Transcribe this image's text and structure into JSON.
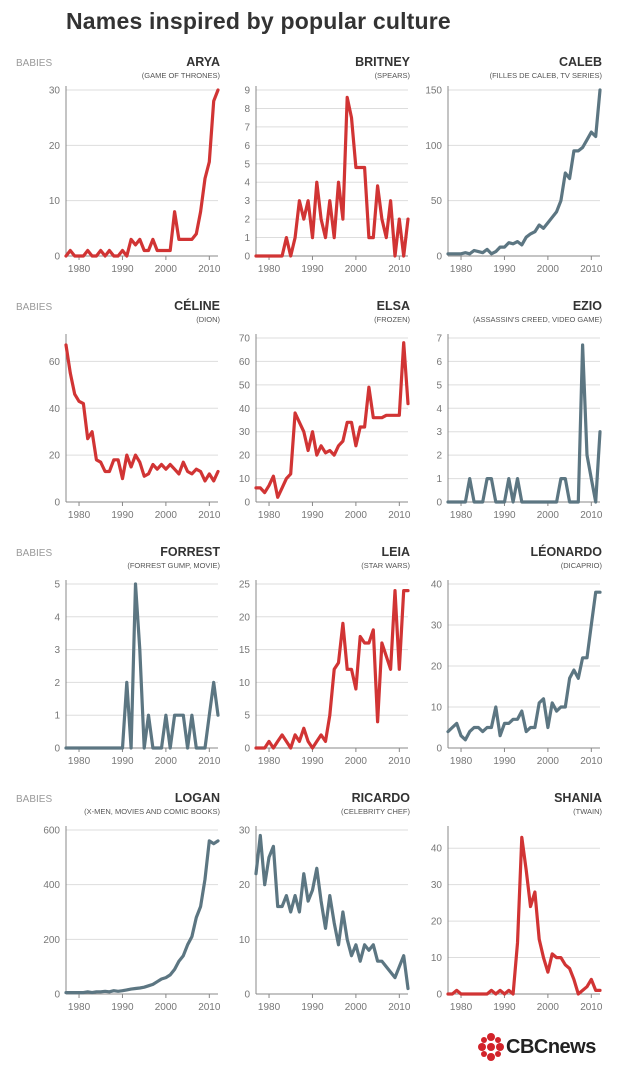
{
  "page": {
    "title": "Names inspired by popular culture"
  },
  "brand": {
    "text": "CBCnews",
    "logo": "cbc-gem-logo"
  },
  "colors": {
    "red": "#d13434",
    "slate": "#5c7682",
    "axis": "#888888",
    "grid": "#dddddd",
    "text": "#777777"
  },
  "axis_label": "BABIES",
  "chart_data": [
    {
      "type": "line",
      "name": "ARYA",
      "subtitle": "(GAME OF THRONES)",
      "color": "red",
      "ylabel": "BABIES",
      "yticks": [
        0,
        10,
        20,
        30
      ],
      "ylim": [
        0,
        30
      ],
      "xticks": [
        1980,
        1990,
        2000,
        2010
      ],
      "xlim": [
        1977,
        2012
      ],
      "x": [
        1977,
        1978,
        1979,
        1980,
        1981,
        1982,
        1983,
        1984,
        1985,
        1986,
        1987,
        1988,
        1989,
        1990,
        1991,
        1992,
        1993,
        1994,
        1995,
        1996,
        1997,
        1998,
        1999,
        2000,
        2001,
        2002,
        2003,
        2004,
        2005,
        2006,
        2007,
        2008,
        2009,
        2010,
        2011,
        2012
      ],
      "values": [
        0,
        1,
        0,
        0,
        0,
        1,
        0,
        0,
        1,
        0,
        1,
        0,
        0,
        1,
        0,
        3,
        2,
        3,
        1,
        1,
        3,
        1,
        1,
        1,
        1,
        8,
        3,
        3,
        3,
        3,
        4,
        8,
        14,
        17,
        28,
        30
      ]
    },
    {
      "type": "line",
      "name": "BRITNEY",
      "subtitle": "(SPEARS)",
      "color": "red",
      "ylabel": "",
      "yticks": [
        0,
        1,
        2,
        3,
        4,
        5,
        6,
        7,
        8,
        9
      ],
      "ylim": [
        0,
        9
      ],
      "xticks": [
        1980,
        1990,
        2000,
        2010
      ],
      "xlim": [
        1977,
        2012
      ],
      "x": [
        1977,
        1978,
        1979,
        1980,
        1981,
        1982,
        1983,
        1984,
        1985,
        1986,
        1987,
        1988,
        1989,
        1990,
        1991,
        1992,
        1993,
        1994,
        1995,
        1996,
        1997,
        1998,
        1999,
        2000,
        2001,
        2002,
        2003,
        2004,
        2005,
        2006,
        2007,
        2008,
        2009,
        2010,
        2011,
        2012
      ],
      "values": [
        0,
        0,
        0,
        0,
        0,
        0,
        0,
        1,
        0,
        1,
        3,
        2,
        3,
        1,
        4,
        2,
        1,
        3,
        1,
        4,
        2,
        8.6,
        7.5,
        4.8,
        4.8,
        4.8,
        1,
        1,
        3.8,
        2,
        1,
        3,
        0,
        2,
        0,
        2
      ]
    },
    {
      "type": "line",
      "name": "CALEB",
      "subtitle": "(FILLES DE CALEB, TV SERIES)",
      "color": "slate",
      "ylabel": "",
      "yticks": [
        0,
        50,
        100,
        150
      ],
      "ylim": [
        0,
        150
      ],
      "xticks": [
        1980,
        1990,
        2000,
        2010
      ],
      "xlim": [
        1977,
        2012
      ],
      "x": [
        1977,
        1978,
        1979,
        1980,
        1981,
        1982,
        1983,
        1984,
        1985,
        1986,
        1987,
        1988,
        1989,
        1990,
        1991,
        1992,
        1993,
        1994,
        1995,
        1996,
        1997,
        1998,
        1999,
        2000,
        2001,
        2002,
        2003,
        2004,
        2005,
        2006,
        2007,
        2008,
        2009,
        2010,
        2011,
        2012
      ],
      "values": [
        2,
        2,
        2,
        2,
        3,
        2,
        5,
        4,
        3,
        6,
        2,
        4,
        8,
        8,
        12,
        11,
        13,
        10,
        17,
        20,
        22,
        28,
        25,
        30,
        35,
        40,
        50,
        75,
        70,
        95,
        95,
        98,
        105,
        112,
        108,
        150
      ]
    },
    {
      "type": "line",
      "name": "CÉLINE",
      "subtitle": "(DION)",
      "color": "red",
      "ylabel": "BABIES",
      "yticks": [
        0,
        20,
        40,
        60
      ],
      "ylim": [
        0,
        70
      ],
      "xticks": [
        1980,
        1990,
        2000,
        2010
      ],
      "xlim": [
        1977,
        2012
      ],
      "x": [
        1977,
        1978,
        1979,
        1980,
        1981,
        1982,
        1983,
        1984,
        1985,
        1986,
        1987,
        1988,
        1989,
        1990,
        1991,
        1992,
        1993,
        1994,
        1995,
        1996,
        1997,
        1998,
        1999,
        2000,
        2001,
        2002,
        2003,
        2004,
        2005,
        2006,
        2007,
        2008,
        2009,
        2010,
        2011,
        2012
      ],
      "values": [
        67,
        55,
        46,
        43,
        42,
        27,
        30,
        18,
        17,
        13,
        13,
        18,
        18,
        10,
        20,
        15,
        20,
        17,
        11,
        12,
        16,
        14,
        16,
        14,
        16,
        14,
        12,
        17,
        13,
        12,
        14,
        13,
        9,
        12,
        9,
        13
      ]
    },
    {
      "type": "line",
      "name": "ELSA",
      "subtitle": "(FROZEN)",
      "color": "red",
      "ylabel": "",
      "yticks": [
        0,
        10,
        20,
        30,
        40,
        50,
        60,
        70
      ],
      "ylim": [
        0,
        70
      ],
      "xticks": [
        1980,
        1990,
        2000,
        2010
      ],
      "xlim": [
        1977,
        2012
      ],
      "x": [
        1977,
        1978,
        1979,
        1980,
        1981,
        1982,
        1983,
        1984,
        1985,
        1986,
        1987,
        1988,
        1989,
        1990,
        1991,
        1992,
        1993,
        1994,
        1995,
        1996,
        1997,
        1998,
        1999,
        2000,
        2001,
        2002,
        2003,
        2004,
        2005,
        2006,
        2007,
        2008,
        2009,
        2010,
        2011,
        2012
      ],
      "values": [
        6,
        6,
        4,
        7,
        11,
        2,
        6,
        10,
        12,
        38,
        34,
        30,
        22,
        30,
        20,
        24,
        21,
        22,
        20,
        24,
        26,
        34,
        34,
        24,
        32,
        32,
        49,
        36,
        36,
        36,
        37,
        37,
        37,
        37,
        68,
        42
      ]
    },
    {
      "type": "line",
      "name": "EZIO",
      "subtitle": "(ASSASSIN'S CREED, VIDEO GAME)",
      "color": "slate",
      "ylabel": "",
      "yticks": [
        0,
        1,
        2,
        3,
        4,
        5,
        6,
        7
      ],
      "ylim": [
        0,
        7
      ],
      "xticks": [
        1980,
        1990,
        2000,
        2010
      ],
      "xlim": [
        1977,
        2012
      ],
      "x": [
        1977,
        1978,
        1979,
        1980,
        1981,
        1982,
        1983,
        1984,
        1985,
        1986,
        1987,
        1988,
        1989,
        1990,
        1991,
        1992,
        1993,
        1994,
        1995,
        1996,
        1997,
        1998,
        1999,
        2000,
        2001,
        2002,
        2003,
        2004,
        2005,
        2006,
        2007,
        2008,
        2009,
        2010,
        2011,
        2012
      ],
      "values": [
        0,
        0,
        0,
        0,
        0,
        1,
        0,
        0,
        0,
        1,
        1,
        0,
        0,
        0,
        1,
        0,
        1,
        0,
        0,
        0,
        0,
        0,
        0,
        0,
        0,
        0,
        1,
        1,
        0,
        0,
        0,
        6.7,
        2,
        1,
        0,
        3
      ]
    },
    {
      "type": "line",
      "name": "FORREST",
      "subtitle": "(FORREST GUMP, MOVIE)",
      "color": "slate",
      "ylabel": "BABIES",
      "yticks": [
        0,
        1,
        2,
        3,
        4,
        5
      ],
      "ylim": [
        0,
        5
      ],
      "xticks": [
        1980,
        1990,
        2000,
        2010
      ],
      "xlim": [
        1977,
        2012
      ],
      "x": [
        1977,
        1978,
        1979,
        1980,
        1981,
        1982,
        1983,
        1984,
        1985,
        1986,
        1987,
        1988,
        1989,
        1990,
        1991,
        1992,
        1993,
        1994,
        1995,
        1996,
        1997,
        1998,
        1999,
        2000,
        2001,
        2002,
        2003,
        2004,
        2005,
        2006,
        2007,
        2008,
        2009,
        2010,
        2011,
        2012
      ],
      "values": [
        0,
        0,
        0,
        0,
        0,
        0,
        0,
        0,
        0,
        0,
        0,
        0,
        0,
        0,
        2,
        0,
        5,
        3,
        0,
        1,
        0,
        0,
        0,
        1,
        0,
        1,
        1,
        1,
        0,
        1,
        0,
        0,
        0,
        1,
        2,
        1
      ]
    },
    {
      "type": "line",
      "name": "LEIA",
      "subtitle": "(STAR WARS)",
      "color": "red",
      "ylabel": "",
      "yticks": [
        0,
        5,
        10,
        15,
        20,
        25
      ],
      "ylim": [
        0,
        25
      ],
      "xticks": [
        1980,
        1990,
        2000,
        2010
      ],
      "xlim": [
        1977,
        2012
      ],
      "x": [
        1977,
        1978,
        1979,
        1980,
        1981,
        1982,
        1983,
        1984,
        1985,
        1986,
        1987,
        1988,
        1989,
        1990,
        1991,
        1992,
        1993,
        1994,
        1995,
        1996,
        1997,
        1998,
        1999,
        2000,
        2001,
        2002,
        2003,
        2004,
        2005,
        2006,
        2007,
        2008,
        2009,
        2010,
        2011,
        2012
      ],
      "values": [
        0,
        0,
        0,
        1,
        0,
        1,
        2,
        1,
        0,
        2,
        1,
        3,
        1,
        0,
        1,
        2,
        1,
        5,
        12,
        13,
        19,
        12,
        12,
        9,
        17,
        16,
        16,
        18,
        4,
        16,
        14,
        12,
        24,
        12,
        24,
        24
      ]
    },
    {
      "type": "line",
      "name": "LÉONARDO",
      "subtitle": "(DICAPRIO)",
      "color": "slate",
      "ylabel": "",
      "yticks": [
        0,
        10,
        20,
        30,
        40
      ],
      "ylim": [
        0,
        40
      ],
      "xticks": [
        1980,
        1990,
        2000,
        2010
      ],
      "xlim": [
        1977,
        2012
      ],
      "x": [
        1977,
        1978,
        1979,
        1980,
        1981,
        1982,
        1983,
        1984,
        1985,
        1986,
        1987,
        1988,
        1989,
        1990,
        1991,
        1992,
        1993,
        1994,
        1995,
        1996,
        1997,
        1998,
        1999,
        2000,
        2001,
        2002,
        2003,
        2004,
        2005,
        2006,
        2007,
        2008,
        2009,
        2010,
        2011,
        2012
      ],
      "values": [
        4,
        5,
        6,
        3,
        2,
        4,
        5,
        5,
        4,
        5,
        5,
        10,
        3,
        6,
        6,
        7,
        7,
        9,
        4,
        5,
        5,
        11,
        12,
        5,
        11,
        9,
        10,
        10,
        17,
        19,
        17,
        22,
        22,
        30,
        38,
        38
      ]
    },
    {
      "type": "line",
      "name": "LOGAN",
      "subtitle": "(X-MEN, MOVIES AND COMIC BOOKS)",
      "color": "slate",
      "ylabel": "BABIES",
      "yticks": [
        0,
        200,
        400,
        600
      ],
      "ylim": [
        0,
        600
      ],
      "xticks": [
        1980,
        1990,
        2000,
        2010
      ],
      "xlim": [
        1977,
        2012
      ],
      "x": [
        1977,
        1978,
        1979,
        1980,
        1981,
        1982,
        1983,
        1984,
        1985,
        1986,
        1987,
        1988,
        1989,
        1990,
        1991,
        1992,
        1993,
        1994,
        1995,
        1996,
        1997,
        1998,
        1999,
        2000,
        2001,
        2002,
        2003,
        2004,
        2005,
        2006,
        2007,
        2008,
        2009,
        2010,
        2011,
        2012
      ],
      "values": [
        5,
        5,
        5,
        5,
        5,
        8,
        5,
        8,
        8,
        10,
        8,
        12,
        10,
        12,
        15,
        18,
        20,
        22,
        25,
        30,
        35,
        45,
        55,
        60,
        70,
        90,
        120,
        140,
        180,
        210,
        280,
        320,
        420,
        560,
        550,
        560
      ]
    },
    {
      "type": "line",
      "name": "RICARDO",
      "subtitle": "(CELEBRITY CHEF)",
      "color": "slate",
      "ylabel": "",
      "yticks": [
        0,
        10,
        20,
        30
      ],
      "ylim": [
        0,
        30
      ],
      "xticks": [
        1980,
        1990,
        2000,
        2010
      ],
      "xlim": [
        1977,
        2012
      ],
      "x": [
        1977,
        1978,
        1979,
        1980,
        1981,
        1982,
        1983,
        1984,
        1985,
        1986,
        1987,
        1988,
        1989,
        1990,
        1991,
        1992,
        1993,
        1994,
        1995,
        1996,
        1997,
        1998,
        1999,
        2000,
        2001,
        2002,
        2003,
        2004,
        2005,
        2006,
        2007,
        2008,
        2009,
        2010,
        2011,
        2012
      ],
      "values": [
        22,
        29,
        20,
        25,
        27,
        16,
        16,
        18,
        15,
        18,
        15,
        22,
        17,
        19,
        23,
        17,
        12,
        18,
        13,
        9,
        15,
        10,
        7,
        9,
        6,
        9,
        8,
        9,
        6,
        6,
        5,
        4,
        3,
        5,
        7,
        1
      ]
    },
    {
      "type": "line",
      "name": "SHANIA",
      "subtitle": "(TWAIN)",
      "color": "red",
      "ylabel": "",
      "yticks": [
        0,
        10,
        20,
        30,
        40
      ],
      "ylim": [
        0,
        45
      ],
      "xticks": [
        1980,
        1990,
        2000,
        2010
      ],
      "xlim": [
        1977,
        2012
      ],
      "x": [
        1977,
        1978,
        1979,
        1980,
        1981,
        1982,
        1983,
        1984,
        1985,
        1986,
        1987,
        1988,
        1989,
        1990,
        1991,
        1992,
        1993,
        1994,
        1995,
        1996,
        1997,
        1998,
        1999,
        2000,
        2001,
        2002,
        2003,
        2004,
        2005,
        2006,
        2007,
        2008,
        2009,
        2010,
        2011,
        2012
      ],
      "values": [
        0,
        0,
        1,
        0,
        0,
        0,
        0,
        0,
        0,
        0,
        1,
        0,
        1,
        0,
        1,
        0,
        14,
        43,
        34,
        24,
        28,
        15,
        10,
        6,
        11,
        10,
        10,
        8,
        7,
        4,
        0,
        1,
        2,
        4,
        1,
        1
      ]
    }
  ]
}
